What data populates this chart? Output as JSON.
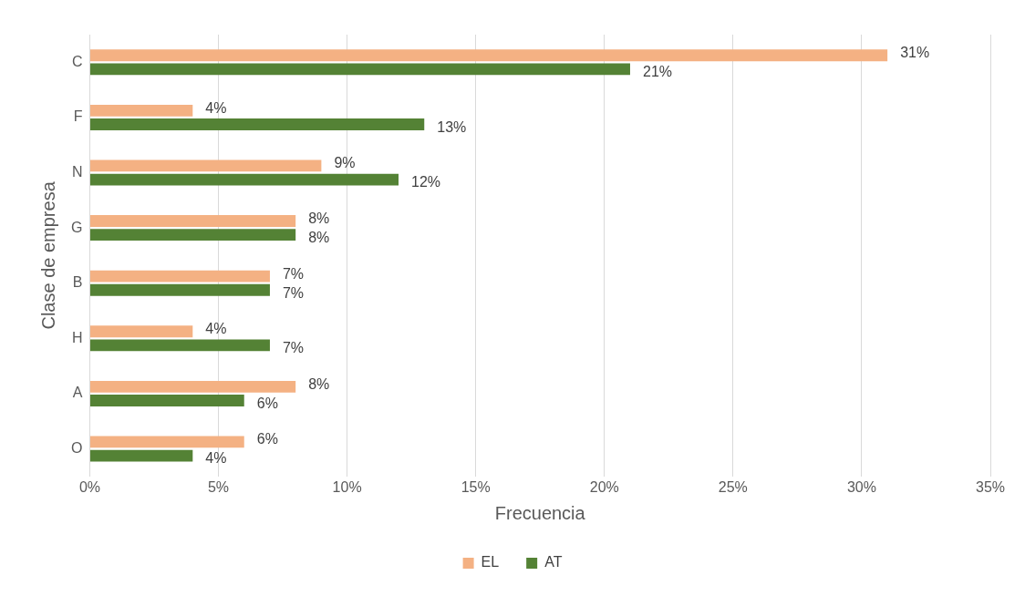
{
  "chart_data": {
    "type": "bar",
    "orientation": "horizontal",
    "xlabel": "Frecuencia",
    "ylabel": "Clase de empresa",
    "categories": [
      "C",
      "F",
      "N",
      "G",
      "B",
      "H",
      "A",
      "O"
    ],
    "series": [
      {
        "name": "EL",
        "color": "#f4b183",
        "values": [
          31,
          4,
          9,
          8,
          7,
          4,
          8,
          6
        ],
        "value_labels": [
          "31%",
          "4%",
          "9%",
          "8%",
          "7%",
          "4%",
          "8%",
          "6%"
        ]
      },
      {
        "name": "AT",
        "color": "#548235",
        "values": [
          21,
          13,
          12,
          8,
          7,
          7,
          6,
          4
        ],
        "value_labels": [
          "21%",
          "13%",
          "12%",
          "8%",
          "7%",
          "7%",
          "6%",
          "4%"
        ]
      }
    ],
    "xlim": [
      0,
      35
    ],
    "xticks": [
      {
        "value": 0,
        "label": "0%"
      },
      {
        "value": 5,
        "label": "5%"
      },
      {
        "value": 10,
        "label": "10%"
      },
      {
        "value": 15,
        "label": "15%"
      },
      {
        "value": 20,
        "label": "20%"
      },
      {
        "value": 25,
        "label": "25%"
      },
      {
        "value": 30,
        "label": "30%"
      },
      {
        "value": 35,
        "label": "35%"
      }
    ],
    "grid": "x",
    "legend": "bottom"
  }
}
